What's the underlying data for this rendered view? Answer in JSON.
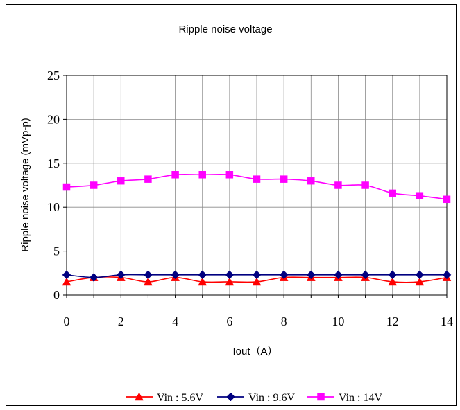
{
  "chart_data": {
    "type": "line",
    "title": "Ripple noise voltage",
    "xlabel": "Iout（A）",
    "ylabel": "Ripple noise voltage (mVp-p)",
    "x": [
      0,
      1,
      2,
      3,
      4,
      5,
      6,
      7,
      8,
      9,
      10,
      11,
      12,
      13,
      14
    ],
    "xlim": [
      0,
      14
    ],
    "ylim": [
      0,
      25
    ],
    "x_ticks": [
      0,
      2,
      4,
      6,
      8,
      10,
      12,
      14
    ],
    "y_ticks": [
      0,
      5,
      10,
      15,
      20,
      25
    ],
    "grid": true,
    "legend_position": "bottom",
    "series": [
      {
        "name": "Vin : 5.6V",
        "color": "#ff0000",
        "marker": "triangle",
        "values": [
          1.5,
          2.0,
          2.0,
          1.5,
          2.0,
          1.5,
          1.5,
          1.5,
          2.0,
          2.0,
          2.0,
          2.0,
          1.5,
          1.5,
          2.0
        ]
      },
      {
        "name": "Vin : 9.6V",
        "color": "#000080",
        "marker": "diamond",
        "values": [
          2.3,
          2.0,
          2.3,
          2.3,
          2.3,
          2.3,
          2.3,
          2.3,
          2.3,
          2.3,
          2.3,
          2.3,
          2.3,
          2.3,
          2.3
        ]
      },
      {
        "name": "Vin : 14V",
        "color": "#ff00ff",
        "marker": "square",
        "values": [
          12.3,
          12.5,
          13.0,
          13.2,
          13.7,
          13.7,
          13.7,
          13.2,
          13.2,
          13.0,
          12.5,
          12.5,
          11.6,
          11.3,
          10.9
        ]
      }
    ]
  }
}
